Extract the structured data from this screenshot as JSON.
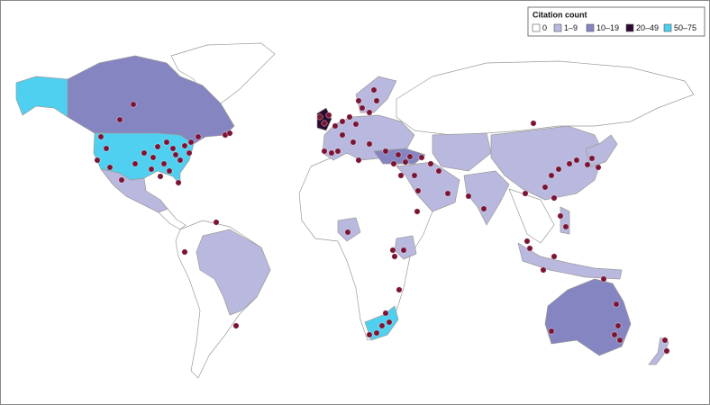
{
  "legend": {
    "title": "Citation count",
    "items": [
      {
        "label": "0",
        "color": "#ffffff"
      },
      {
        "label": "1–9",
        "color": "#b9b9df"
      },
      {
        "label": "10–19",
        "color": "#8585c2"
      },
      {
        "label": "20–49",
        "color": "#2a0a2e"
      },
      {
        "label": "50–75",
        "color": "#4fd0f0"
      }
    ]
  }
}
